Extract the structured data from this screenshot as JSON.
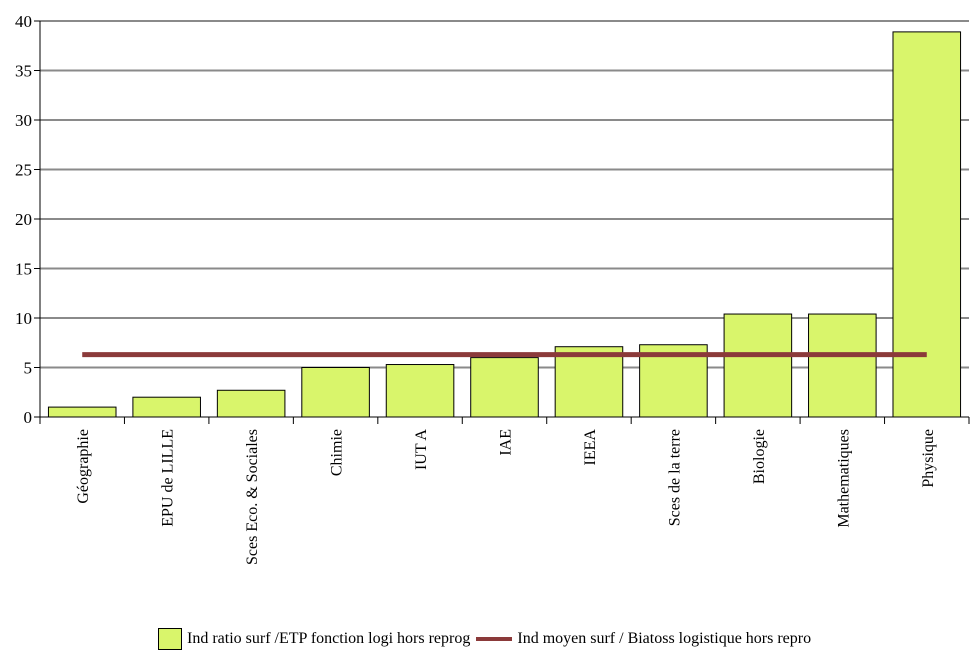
{
  "chart_data": {
    "type": "bar",
    "title": "",
    "xlabel": "",
    "ylabel": "",
    "ylim": [
      0,
      40
    ],
    "yticks": [
      "0",
      "5",
      "10",
      "15",
      "20",
      "25",
      "30",
      "35",
      "40"
    ],
    "grid": true,
    "legend_position": "bottom",
    "categories": [
      "Géographie",
      "EPU de LILLE",
      "Sces Eco. & Sociales",
      "Chimie",
      "IUT A",
      "IAE",
      "IEEA",
      "Sces de la terre",
      "Biologie",
      "Mathematiques",
      "Physique"
    ],
    "series": [
      {
        "name": "Ind ratio surf /ETP fonction logi hors reprog",
        "type": "bar",
        "color": "#d9f56b",
        "values": [
          1.0,
          2.0,
          2.7,
          5.0,
          5.3,
          6.0,
          7.1,
          7.3,
          10.4,
          10.4,
          38.9
        ]
      },
      {
        "name": "Ind moyen surf / Biatoss logistique hors repro",
        "type": "line",
        "color": "#8b3a3a",
        "values": [
          6.3,
          6.3,
          6.3,
          6.3,
          6.3,
          6.3,
          6.3,
          6.3,
          6.3,
          6.3,
          6.3
        ]
      }
    ]
  }
}
